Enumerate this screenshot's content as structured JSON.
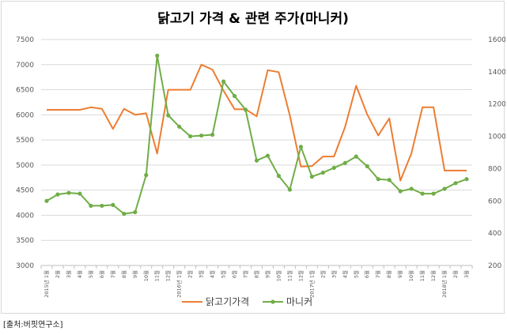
{
  "chart_data": {
    "type": "line",
    "title": "닭고기 가격 & 관련 주가(마니커)",
    "x": [
      "2015년 1월",
      "2월",
      "3월",
      "4월",
      "5월",
      "6월",
      "7월",
      "8월",
      "9월",
      "10월",
      "11월",
      "12월",
      "2016년 1월",
      "2월",
      "3월",
      "4월",
      "5월",
      "6월",
      "7월",
      "8월",
      "9월",
      "10월",
      "11월",
      "12월",
      "2017년 1월",
      "2월",
      "3월",
      "4월",
      "5월",
      "6월",
      "7월",
      "8월",
      "9월",
      "10월",
      "11월",
      "12월",
      "2018년 1월",
      "2월",
      "3월"
    ],
    "left_axis": {
      "ylim": [
        3000,
        7500
      ],
      "ticks": [
        3000,
        3500,
        4000,
        4500,
        5000,
        5500,
        6000,
        6500,
        7000,
        7500
      ]
    },
    "right_axis": {
      "ylim": [
        200,
        1600
      ],
      "ticks": [
        200,
        400,
        600,
        800,
        1000,
        1200,
        1400,
        1600
      ]
    },
    "series": [
      {
        "name": "닭고기가격",
        "axis": "left",
        "color": "#ED7D31",
        "values": [
          6100,
          6100,
          6100,
          6100,
          6150,
          6120,
          5720,
          6120,
          6000,
          6030,
          5230,
          6500,
          6500,
          6500,
          7000,
          6900,
          6480,
          6110,
          6110,
          5970,
          6890,
          6850,
          5990,
          4970,
          4980,
          5170,
          5170,
          5760,
          6580,
          6010,
          5590,
          5930,
          4690,
          5230,
          6150,
          6150,
          4890,
          4890,
          4890
        ]
      },
      {
        "name": "마니커",
        "axis": "right",
        "color": "#70AD47",
        "values": [
          600,
          640,
          650,
          645,
          570,
          570,
          575,
          520,
          530,
          760,
          1500,
          1130,
          1060,
          1000,
          1005,
          1010,
          1340,
          1250,
          1165,
          850,
          880,
          755,
          670,
          935,
          750,
          775,
          805,
          835,
          875,
          815,
          735,
          730,
          660,
          675,
          645,
          645,
          675,
          710,
          735
        ]
      }
    ]
  },
  "source_note": "[출처:버핏연구소]"
}
